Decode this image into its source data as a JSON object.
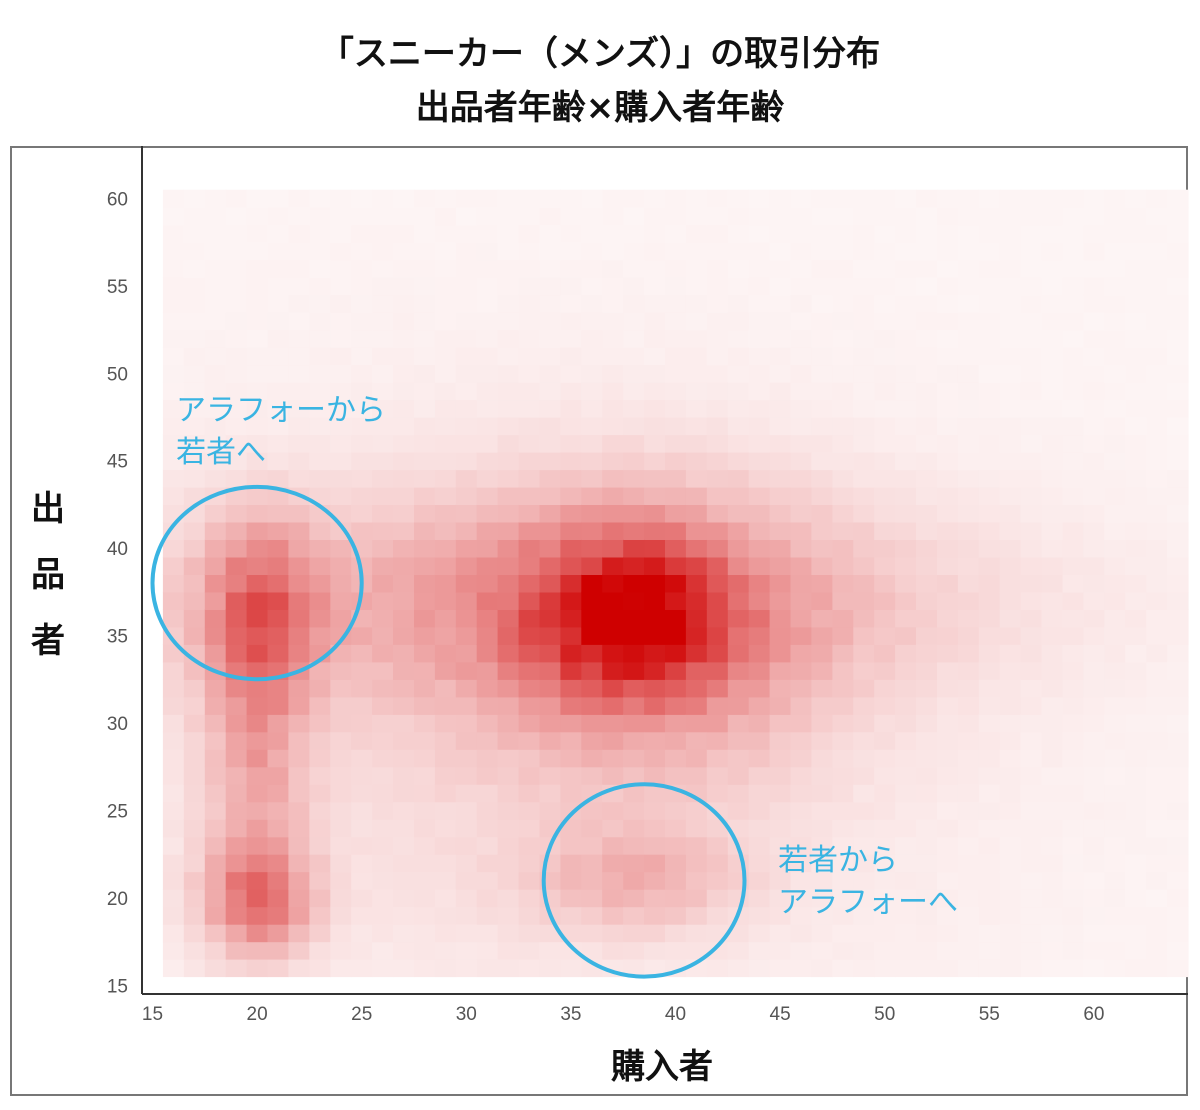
{
  "chart_data": {
    "type": "heatmap",
    "title": "「スニーカー（メンズ）」の取引分布",
    "subtitle": "出品者年齢×購入者年齢",
    "xlabel": "購入者",
    "ylabel": "出品者",
    "xlim": [
      14.5,
      64.5
    ],
    "ylim": [
      14.5,
      63
    ],
    "x_ticks": [
      15,
      20,
      25,
      30,
      35,
      40,
      45,
      50,
      55,
      60
    ],
    "y_ticks": [
      15,
      20,
      25,
      30,
      35,
      40,
      45,
      50,
      55,
      60
    ],
    "age_bins": {
      "x": [
        16,
        64
      ],
      "y": [
        16,
        60
      ]
    },
    "color_scale": {
      "low": "#ffffff",
      "high": "#cf0000"
    },
    "intensity_components": [
      {
        "x": 37.8,
        "y": 36.0,
        "sx": 3.2,
        "sy": 3.2,
        "w": 0.55
      },
      {
        "x": 38.5,
        "y": 35.0,
        "sx": 6.0,
        "sy": 6.0,
        "w": 0.25
      },
      {
        "x": 20.2,
        "y": 36.5,
        "sx": 1.8,
        "sy": 3.5,
        "w": 0.4
      },
      {
        "x": 20.0,
        "y": 20.0,
        "sx": 1.8,
        "sy": 2.2,
        "w": 0.45
      },
      {
        "x": 20.0,
        "y": 28.0,
        "sx": 1.6,
        "sy": 5.0,
        "w": 0.25
      },
      {
        "x": 38.0,
        "y": 21.0,
        "sx": 3.5,
        "sy": 2.0,
        "w": 0.2
      },
      {
        "x": 34.0,
        "y": 37.0,
        "sx": 14.0,
        "sy": 4.0,
        "w": 0.22
      },
      {
        "x": 32.0,
        "y": 30.0,
        "sx": 15.0,
        "sy": 12.0,
        "w": 0.1
      }
    ],
    "intensity_background": 0.04,
    "annotations": [
      {
        "lines": [
          "アラフォーから",
          "若者へ"
        ],
        "ellipse": {
          "cx": 20,
          "cy": 38,
          "rx": 5,
          "ry": 5.5
        }
      },
      {
        "lines": [
          "若者から",
          "アラフォーへ"
        ],
        "ellipse": {
          "cx": 38.5,
          "cy": 21,
          "rx": 4.8,
          "ry": 5.5
        }
      }
    ],
    "annotation_color": "#3ab4e2"
  }
}
